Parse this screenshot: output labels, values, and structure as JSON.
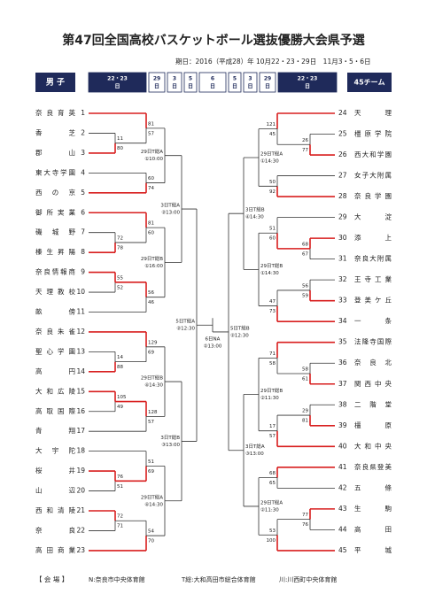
{
  "header": {
    "title": "第47回全国高校バスケットボール選抜優勝大会県予選",
    "period": "期日：2016（平成28）年 10月22・23・29日　11月3・5・6日",
    "left_label": "男 子",
    "right_label": "45チーム",
    "columns": [
      {
        "top": "22・23",
        "bottom": "日"
      },
      {
        "top": "29",
        "bottom": "日"
      },
      {
        "top": "3",
        "bottom": "日"
      },
      {
        "top": "5",
        "bottom": "日"
      },
      {
        "top": "6",
        "bottom": "日"
      },
      {
        "top": "5",
        "bottom": "日"
      },
      {
        "top": "3",
        "bottom": "日"
      },
      {
        "top": "29",
        "bottom": "日"
      },
      {
        "top": "22・23",
        "bottom": "日"
      }
    ]
  },
  "left": {
    "teams": [
      {
        "name": "奈良育英",
        "no": "1"
      },
      {
        "name": "香芝",
        "no": "2"
      },
      {
        "name": "郡山",
        "no": "3"
      },
      {
        "name": "東大寺学園",
        "no": "4"
      },
      {
        "name": "西の京",
        "no": "5"
      },
      {
        "name": "御所実業",
        "no": "6"
      },
      {
        "name": "磯城野",
        "no": "7"
      },
      {
        "name": "榛生昇陽",
        "no": "8"
      },
      {
        "name": "奈良情報商",
        "no": "9"
      },
      {
        "name": "天理教校",
        "no": "10"
      },
      {
        "name": "畝傍",
        "no": "11"
      },
      {
        "name": "奈良朱雀",
        "no": "12"
      },
      {
        "name": "聖心学園",
        "no": "13"
      },
      {
        "name": "高円",
        "no": "14"
      },
      {
        "name": "大和広陵",
        "no": "15"
      },
      {
        "name": "高取国際",
        "no": "16"
      },
      {
        "name": "青翔",
        "no": "17"
      },
      {
        "name": "大宇陀",
        "no": "18"
      },
      {
        "name": "桜井",
        "no": "19"
      },
      {
        "name": "山辺",
        "no": "20"
      },
      {
        "name": "西和清陵",
        "no": "21"
      },
      {
        "name": "奈良",
        "no": "22"
      },
      {
        "name": "高田商業",
        "no": "23"
      }
    ],
    "matches": [
      {
        "scores": [
          "11",
          "80"
        ]
      },
      {
        "scores": [
          "81",
          "57"
        ]
      },
      {
        "scores": [
          "60",
          "74"
        ]
      },
      {
        "note": [
          "29日T総A",
          "①10:00"
        ]
      },
      {
        "scores": [
          "72",
          "78"
        ]
      },
      {
        "scores": [
          "81",
          "60"
        ]
      },
      {
        "scores": [
          "55",
          "52"
        ]
      },
      {
        "scores": [
          "56",
          "46"
        ]
      },
      {
        "note": [
          "29日T総B",
          "①16:00"
        ]
      },
      {
        "note": [
          "3日T総A",
          "②13:00"
        ]
      },
      {
        "scores": [
          "14",
          "88"
        ]
      },
      {
        "scores": [
          "129",
          "69"
        ]
      },
      {
        "scores": [
          "105",
          "49"
        ]
      },
      {
        "scores": [
          "128",
          "57"
        ]
      },
      {
        "note": [
          "29日T総B",
          "④14:30"
        ]
      },
      {
        "scores": [
          "76",
          "51"
        ]
      },
      {
        "scores": [
          "51",
          "69"
        ]
      },
      {
        "scores": [
          "72",
          "71"
        ]
      },
      {
        "scores": [
          "54",
          "70"
        ]
      },
      {
        "note": [
          "29日T総A",
          "④14:30"
        ]
      },
      {
        "note": [
          "3日T総B",
          "③13:00"
        ]
      },
      {
        "note": [
          "5日T総A",
          "②12:30"
        ]
      }
    ]
  },
  "right": {
    "teams": [
      {
        "name": "天理",
        "no": "24"
      },
      {
        "name": "橿原学院",
        "no": "25"
      },
      {
        "name": "西大和学園",
        "no": "26"
      },
      {
        "name": "女子大附属",
        "no": "27"
      },
      {
        "name": "奈良学園",
        "no": "28"
      },
      {
        "name": "大淀",
        "no": "29"
      },
      {
        "name": "添上",
        "no": "30"
      },
      {
        "name": "奈良大附属",
        "no": "31"
      },
      {
        "name": "王寺工業",
        "no": "32"
      },
      {
        "name": "登美ケ丘",
        "no": "33"
      },
      {
        "name": "一条",
        "no": "34"
      },
      {
        "name": "法隆寺国際",
        "no": "35"
      },
      {
        "name": "奈良北",
        "no": "36"
      },
      {
        "name": "関西中央",
        "no": "37"
      },
      {
        "name": "二階堂",
        "no": "38"
      },
      {
        "name": "橿原",
        "no": "39"
      },
      {
        "name": "大和中央",
        "no": "40"
      },
      {
        "name": "奈良県登美",
        "no": "41"
      },
      {
        "name": "五條",
        "no": "42"
      },
      {
        "name": "生駒",
        "no": "43"
      },
      {
        "name": "高田",
        "no": "44"
      },
      {
        "name": "平城",
        "no": "45"
      }
    ],
    "matches": [
      {
        "scores": [
          "26",
          "77"
        ]
      },
      {
        "scores": [
          "121",
          "45"
        ]
      },
      {
        "scores": [
          "50",
          "92"
        ]
      },
      {
        "note": [
          "29日T総A",
          "①14:30"
        ]
      },
      {
        "scores": [
          "68",
          "67"
        ]
      },
      {
        "scores": [
          "51",
          "60"
        ]
      },
      {
        "scores": [
          "56",
          "59"
        ]
      },
      {
        "scores": [
          "47",
          "73"
        ]
      },
      {
        "note": [
          "29日T総B",
          "①14:30"
        ]
      },
      {
        "note": [
          "3日T総B",
          "④14:30"
        ]
      },
      {
        "scores": [
          "58",
          "61"
        ]
      },
      {
        "scores": [
          "71",
          "58"
        ]
      },
      {
        "scores": [
          "29",
          "81"
        ]
      },
      {
        "scores": [
          "17",
          "57"
        ]
      },
      {
        "note": [
          "29日T総B",
          "②11:30"
        ]
      },
      {
        "scores": [
          "68",
          "65"
        ]
      },
      {
        "scores": [
          "77",
          "76"
        ]
      },
      {
        "scores": [
          "53",
          "100"
        ]
      },
      {
        "note": [
          "29日T総A",
          "②11:30"
        ]
      },
      {
        "note": [
          "3日T総A",
          "③13:00"
        ]
      },
      {
        "note": [
          "5日T総B",
          "②12:30"
        ]
      }
    ]
  },
  "final": {
    "note": [
      "6日NA",
      "②13:00"
    ]
  },
  "footer": {
    "label": "【 会 場 】",
    "venues": [
      "N:奈良市中央体育館",
      "T総:大和高田市総合体育館",
      "川:川西町中央体育館"
    ]
  }
}
